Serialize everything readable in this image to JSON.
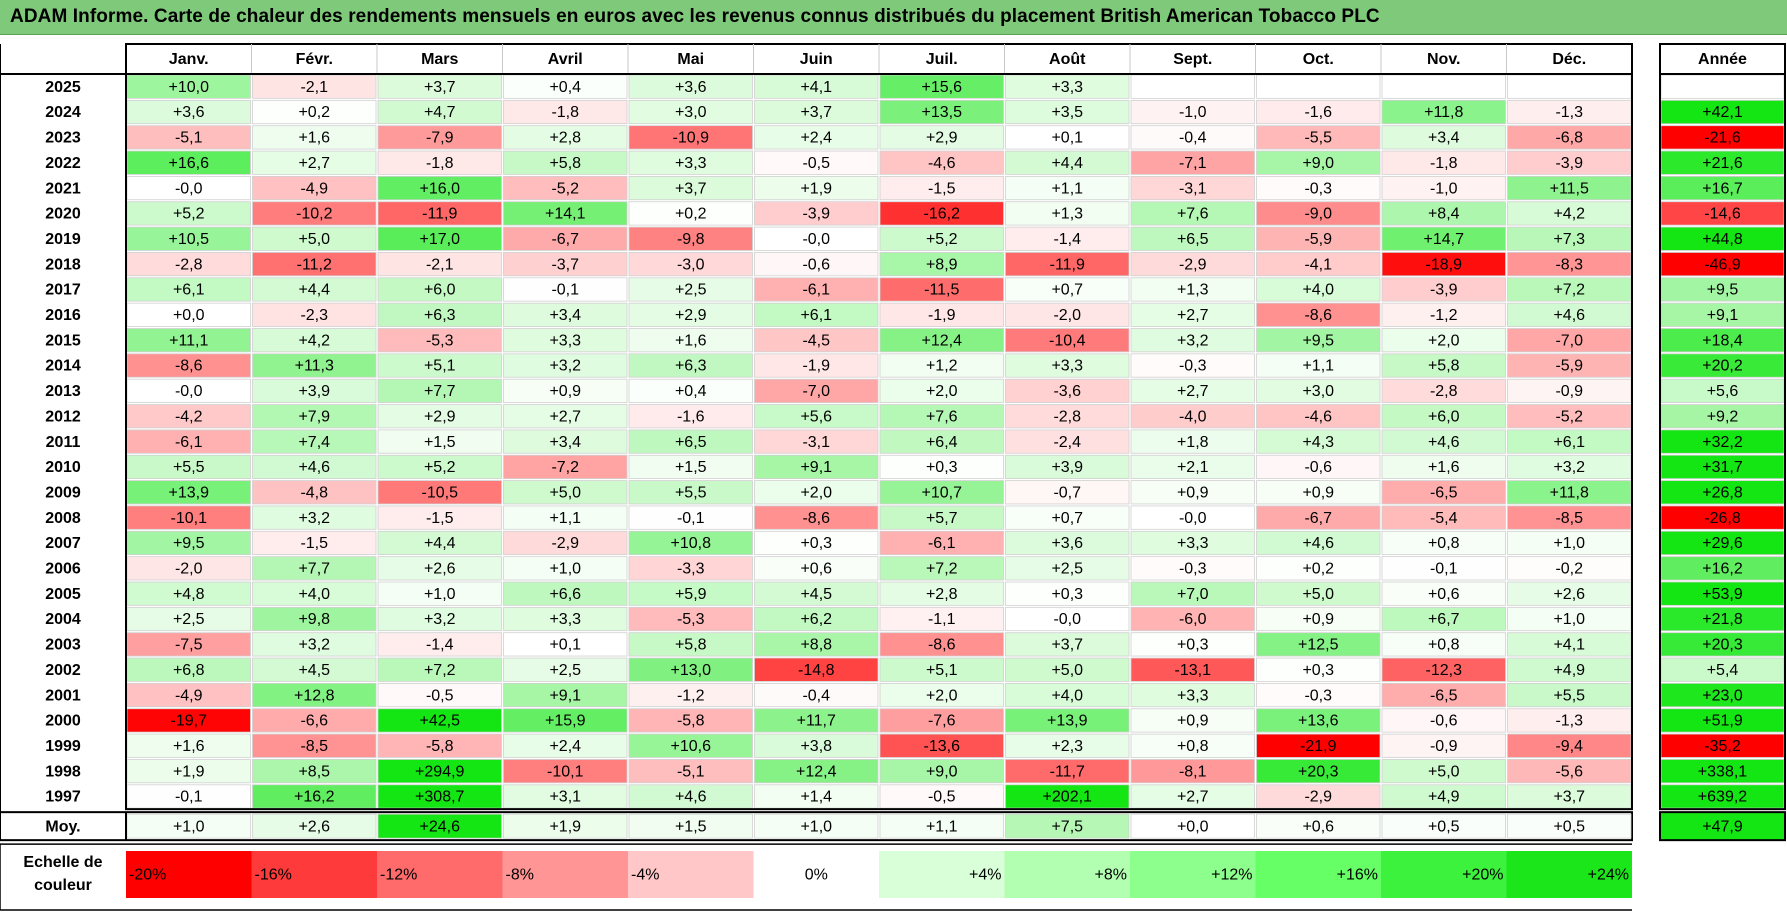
{
  "title": "ADAM Informe. Carte de chaleur des rendements mensuels en euros avec les revenus connus distribués du placement British American Tobacco PLC",
  "chart_data": {
    "type": "heatmap",
    "columns": [
      "Janv.",
      "Févr.",
      "Mars",
      "Avril",
      "Mai",
      "Juin",
      "Juil.",
      "Août",
      "Sept.",
      "Oct.",
      "Nov.",
      "Déc."
    ],
    "year_column_label": "Année",
    "average_row_label": "Moy.",
    "rows": [
      {
        "year": "2025",
        "values": [
          "+10,0",
          "-2,1",
          "+3,7",
          "+0,4",
          "+3,6",
          "+4,1",
          "+15,6",
          "+3,3",
          "",
          "",
          "",
          ""
        ],
        "annual": ""
      },
      {
        "year": "2024",
        "values": [
          "+3,6",
          "+0,2",
          "+4,7",
          "-1,8",
          "+3,0",
          "+3,7",
          "+13,5",
          "+3,5",
          "-1,0",
          "-1,6",
          "+11,8",
          "-1,3"
        ],
        "annual": "+42,1"
      },
      {
        "year": "2023",
        "values": [
          "-5,1",
          "+1,6",
          "-7,9",
          "+2,8",
          "-10,9",
          "+2,4",
          "+2,9",
          "+0,1",
          "-0,4",
          "-5,5",
          "+3,4",
          "-6,8"
        ],
        "annual": "-21,6"
      },
      {
        "year": "2022",
        "values": [
          "+16,6",
          "+2,7",
          "-1,8",
          "+5,8",
          "+3,3",
          "-0,5",
          "-4,6",
          "+4,4",
          "-7,1",
          "+9,0",
          "-1,8",
          "-3,9"
        ],
        "annual": "+21,6"
      },
      {
        "year": "2021",
        "values": [
          "-0,0",
          "-4,9",
          "+16,0",
          "-5,2",
          "+3,7",
          "+1,9",
          "-1,5",
          "+1,1",
          "-3,1",
          "-0,3",
          "-1,0",
          "+11,5"
        ],
        "annual": "+16,7"
      },
      {
        "year": "2020",
        "values": [
          "+5,2",
          "-10,2",
          "-11,9",
          "+14,1",
          "+0,2",
          "-3,9",
          "-16,2",
          "+1,3",
          "+7,6",
          "-9,0",
          "+8,4",
          "+4,2"
        ],
        "annual": "-14,6"
      },
      {
        "year": "2019",
        "values": [
          "+10,5",
          "+5,0",
          "+17,0",
          "-6,7",
          "-9,8",
          "-0,0",
          "+5,2",
          "-1,4",
          "+6,5",
          "-5,9",
          "+14,7",
          "+7,3"
        ],
        "annual": "+44,8"
      },
      {
        "year": "2018",
        "values": [
          "-2,8",
          "-11,2",
          "-2,1",
          "-3,7",
          "-3,0",
          "-0,6",
          "+8,9",
          "-11,9",
          "-2,9",
          "-4,1",
          "-18,9",
          "-8,3"
        ],
        "annual": "-46,9"
      },
      {
        "year": "2017",
        "values": [
          "+6,1",
          "+4,4",
          "+6,0",
          "-0,1",
          "+2,5",
          "-6,1",
          "-11,5",
          "+0,7",
          "+1,3",
          "+4,0",
          "-3,9",
          "+7,2"
        ],
        "annual": "+9,5"
      },
      {
        "year": "2016",
        "values": [
          "+0,0",
          "-2,3",
          "+6,3",
          "+3,4",
          "+2,9",
          "+6,1",
          "-1,9",
          "-2,0",
          "+2,7",
          "-8,6",
          "-1,2",
          "+4,6"
        ],
        "annual": "+9,1"
      },
      {
        "year": "2015",
        "values": [
          "+11,1",
          "+4,2",
          "-5,3",
          "+3,3",
          "+1,6",
          "-4,5",
          "+12,4",
          "-10,4",
          "+3,2",
          "+9,5",
          "+2,0",
          "-7,0"
        ],
        "annual": "+18,4"
      },
      {
        "year": "2014",
        "values": [
          "-8,6",
          "+11,3",
          "+5,1",
          "+3,2",
          "+6,3",
          "-1,9",
          "+1,2",
          "+3,3",
          "-0,3",
          "+1,1",
          "+5,8",
          "-5,9"
        ],
        "annual": "+20,2"
      },
      {
        "year": "2013",
        "values": [
          "-0,0",
          "+3,9",
          "+7,7",
          "+0,9",
          "+0,4",
          "-7,0",
          "+2,0",
          "-3,6",
          "+2,7",
          "+3,0",
          "-2,8",
          "-0,9"
        ],
        "annual": "+5,6"
      },
      {
        "year": "2012",
        "values": [
          "-4,2",
          "+7,9",
          "+2,9",
          "+2,7",
          "-1,6",
          "+5,6",
          "+7,6",
          "-2,8",
          "-4,0",
          "-4,6",
          "+6,0",
          "-5,2"
        ],
        "annual": "+9,2"
      },
      {
        "year": "2011",
        "values": [
          "-6,1",
          "+7,4",
          "+1,5",
          "+3,4",
          "+6,5",
          "-3,1",
          "+6,4",
          "-2,4",
          "+1,8",
          "+4,3",
          "+4,6",
          "+6,1"
        ],
        "annual": "+32,2"
      },
      {
        "year": "2010",
        "values": [
          "+5,5",
          "+4,6",
          "+5,2",
          "-7,2",
          "+1,5",
          "+9,1",
          "+0,3",
          "+3,9",
          "+2,1",
          "-0,6",
          "+1,6",
          "+3,2"
        ],
        "annual": "+31,7"
      },
      {
        "year": "2009",
        "values": [
          "+13,9",
          "-4,8",
          "-10,5",
          "+5,0",
          "+5,5",
          "+2,0",
          "+10,7",
          "-0,7",
          "+0,9",
          "+0,9",
          "-6,5",
          "+11,8"
        ],
        "annual": "+26,8"
      },
      {
        "year": "2008",
        "values": [
          "-10,1",
          "+3,2",
          "-1,5",
          "+1,1",
          "-0,1",
          "-8,6",
          "+5,7",
          "+0,7",
          "-0,0",
          "-6,7",
          "-5,4",
          "-8,5"
        ],
        "annual": "-26,8"
      },
      {
        "year": "2007",
        "values": [
          "+9,5",
          "-1,5",
          "+4,4",
          "-2,9",
          "+10,8",
          "+0,3",
          "-6,1",
          "+3,6",
          "+3,3",
          "+4,6",
          "+0,8",
          "+1,0"
        ],
        "annual": "+29,6"
      },
      {
        "year": "2006",
        "values": [
          "-2,0",
          "+7,7",
          "+2,6",
          "+1,0",
          "-3,3",
          "+0,6",
          "+7,2",
          "+2,5",
          "-0,3",
          "+0,2",
          "-0,1",
          "-0,2"
        ],
        "annual": "+16,2"
      },
      {
        "year": "2005",
        "values": [
          "+4,8",
          "+4,0",
          "+1,0",
          "+6,6",
          "+5,9",
          "+4,5",
          "+2,8",
          "+0,3",
          "+7,0",
          "+5,0",
          "+0,6",
          "+2,6"
        ],
        "annual": "+53,9"
      },
      {
        "year": "2004",
        "values": [
          "+2,5",
          "+9,8",
          "+3,2",
          "+3,3",
          "-5,3",
          "+6,2",
          "-1,1",
          "-0,0",
          "-6,0",
          "+0,9",
          "+6,7",
          "+1,0"
        ],
        "annual": "+21,8"
      },
      {
        "year": "2003",
        "values": [
          "-7,5",
          "+3,2",
          "-1,4",
          "+0,1",
          "+5,8",
          "+8,8",
          "-8,6",
          "+3,7",
          "+0,3",
          "+12,5",
          "+0,8",
          "+4,1"
        ],
        "annual": "+20,3"
      },
      {
        "year": "2002",
        "values": [
          "+6,8",
          "+4,5",
          "+7,2",
          "+2,5",
          "+13,0",
          "-14,8",
          "+5,1",
          "+5,0",
          "-13,1",
          "+0,3",
          "-12,3",
          "+4,9"
        ],
        "annual": "+5,4"
      },
      {
        "year": "2001",
        "values": [
          "-4,9",
          "+12,8",
          "-0,5",
          "+9,1",
          "-1,2",
          "-0,4",
          "+2,0",
          "+4,0",
          "+3,3",
          "-0,3",
          "-6,5",
          "+5,5"
        ],
        "annual": "+23,0"
      },
      {
        "year": "2000",
        "values": [
          "-19,7",
          "-6,6",
          "+42,5",
          "+15,9",
          "-5,8",
          "+11,7",
          "-7,6",
          "+13,9",
          "+0,9",
          "+13,6",
          "-0,6",
          "-1,3"
        ],
        "annual": "+51,9"
      },
      {
        "year": "1999",
        "values": [
          "+1,6",
          "-8,5",
          "-5,8",
          "+2,4",
          "+10,6",
          "+3,8",
          "-13,6",
          "+2,3",
          "+0,8",
          "-21,9",
          "-0,9",
          "-9,4"
        ],
        "annual": "-35,2"
      },
      {
        "year": "1998",
        "values": [
          "+1,9",
          "+8,5",
          "+294,9",
          "-10,1",
          "-5,1",
          "+12,4",
          "+9,0",
          "-11,7",
          "-8,1",
          "+20,3",
          "+5,0",
          "-5,6"
        ],
        "annual": "+338,1"
      },
      {
        "year": "1997",
        "values": [
          "-0,1",
          "+16,2",
          "+308,7",
          "+3,1",
          "+4,6",
          "+1,4",
          "-0,5",
          "+202,1",
          "+2,7",
          "-2,9",
          "+4,9",
          "+3,7"
        ],
        "annual": "+639,2"
      }
    ],
    "average": {
      "values": [
        "+1,0",
        "+2,6",
        "+24,6",
        "+1,9",
        "+1,5",
        "+1,0",
        "+1,1",
        "+7,5",
        "+0,0",
        "+0,6",
        "+0,5",
        "+0,5"
      ],
      "annual": "+47,9"
    },
    "color_scale": {
      "label_line1": "Echelle de",
      "label_line2": "couleur",
      "steps": [
        {
          "label": "-20%",
          "color": "#ff0000"
        },
        {
          "label": "-16%",
          "color": "#ff3a3a"
        },
        {
          "label": "-12%",
          "color": "#ff6a6a"
        },
        {
          "label": "-8%",
          "color": "#ff9595"
        },
        {
          "label": "-4%",
          "color": "#ffc7c7"
        },
        {
          "label": "0%",
          "color": "#ffffff"
        },
        {
          "label": "+4%",
          "color": "#d9ffd9"
        },
        {
          "label": "+8%",
          "color": "#b2ffb2"
        },
        {
          "label": "+12%",
          "color": "#8cff8c"
        },
        {
          "label": "+16%",
          "color": "#66ff66"
        },
        {
          "label": "+20%",
          "color": "#3cf23c"
        },
        {
          "label": "+24%",
          "color": "#1ae61a"
        }
      ]
    }
  }
}
